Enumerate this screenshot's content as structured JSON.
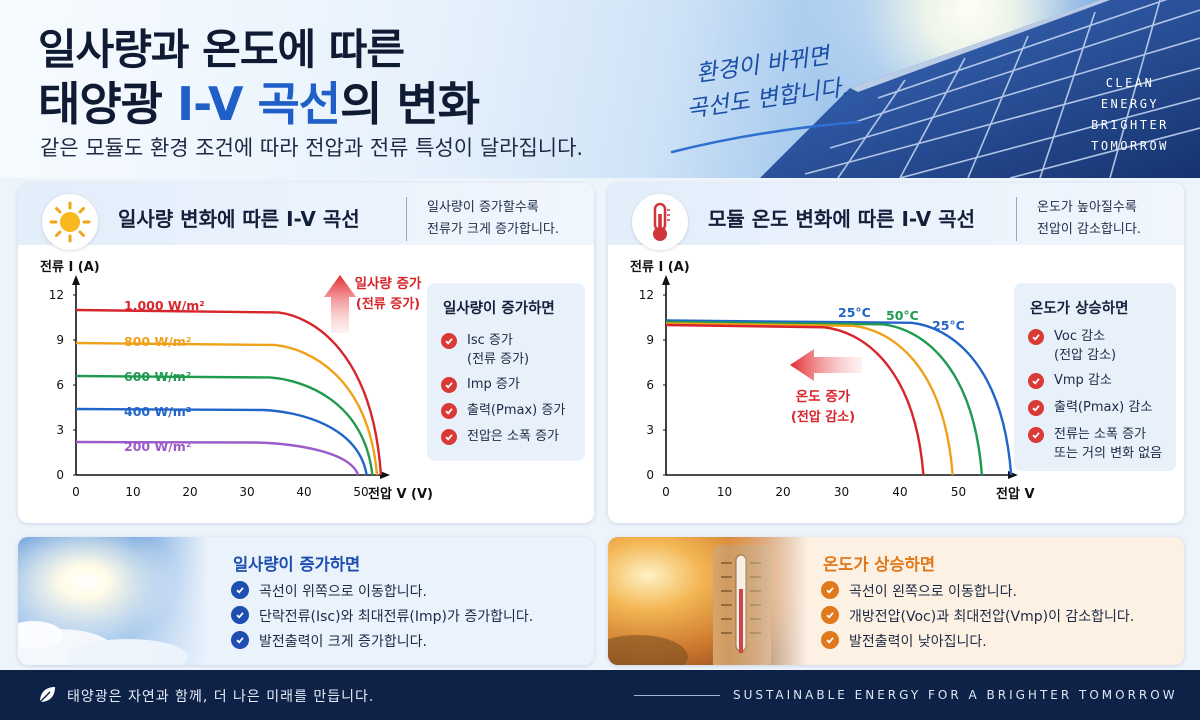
{
  "header": {
    "title_line1": "일사량과 온도에 따른",
    "title_line2_pre": "태양광",
    "title_line2_hl": "I-V 곡선",
    "title_line2_post": "의 변화",
    "subtitle": "같은 모듈도 환경 조건에 따라 전압과 전류 특성이 달라집니다.",
    "handwritten_line1": "환경이 바뀌면",
    "handwritten_line2": "곡선도 변합니다.",
    "badge": [
      "CLEAN",
      "ENERGY",
      "BRIGHTER",
      "TOMORROW"
    ]
  },
  "left_card": {
    "title": "일사량 변화에 따른 I-V 곡선",
    "note_line1": "일사량이 증가할수록",
    "note_line2": "전류가 크게 증가합니다.",
    "icon": "sun-icon",
    "arrow_label_line1": "일사량 증가",
    "arrow_label_line2": "(전류 증가)",
    "info_title": "일사량이 증가하면",
    "info_items": [
      {
        "line1": "Isc 증가",
        "line2": "(전류 증가)"
      },
      {
        "line1": "Imp 증가",
        "line2": ""
      },
      {
        "line1": "출력(Pmax) 증가",
        "line2": ""
      },
      {
        "line1": "전압은 소폭 증가",
        "line2": ""
      }
    ]
  },
  "right_card": {
    "title": "모듈 온도 변화에 따른 I-V 곡선",
    "note_line1": "온도가 높아질수록",
    "note_line2": "전압이 감소합니다.",
    "icon": "thermometer-icon",
    "arrow_label_line1": "온도 증가",
    "arrow_label_line2": "(전압 감소)",
    "info_title": "온도가 상승하면",
    "info_items": [
      {
        "line1": "Voc 감소",
        "line2": "(전압 감소)"
      },
      {
        "line1": "Vmp 감소",
        "line2": ""
      },
      {
        "line1": "출력(Pmax) 감소",
        "line2": ""
      },
      {
        "line1": "전류는 소폭 증가",
        "line2": "또는 거의 변화 없음"
      }
    ]
  },
  "chart_data": [
    {
      "type": "line",
      "ylabel": "전류 I (A)",
      "xlabel": "전압 V (V)",
      "xlim": [
        0,
        57
      ],
      "ylim": [
        0,
        12
      ],
      "x_ticks": [
        "0",
        "10",
        "20",
        "30",
        "40",
        "50"
      ],
      "y_ticks": [
        "0",
        "3",
        "6",
        "9",
        "12"
      ],
      "series": [
        {
          "name": "1,000 W/m²",
          "color": "#d6262c",
          "isc": 11,
          "voc": 53.5
        },
        {
          "name": "800 W/m²",
          "color": "#f0a11a",
          "isc": 8.8,
          "voc": 52.8
        },
        {
          "name": "600 W/m²",
          "color": "#1f9a4f",
          "isc": 6.6,
          "voc": 52
        },
        {
          "name": "400 W/m²",
          "color": "#2165c9",
          "isc": 4.4,
          "voc": 51
        },
        {
          "name": "200 W/m²",
          "color": "#9b5cc9",
          "isc": 2.2,
          "voc": 49.5
        }
      ]
    },
    {
      "type": "line",
      "ylabel": "전류 I (A)",
      "xlabel": "전압 V (V)",
      "xlim": [
        0,
        60
      ],
      "ylim": [
        0,
        12
      ],
      "x_ticks": [
        "0",
        "10",
        "20",
        "30",
        "40",
        "50"
      ],
      "y_ticks": [
        "0",
        "3",
        "6",
        "9",
        "12"
      ],
      "series": [
        {
          "name": "25°C",
          "color": "#2165c9",
          "isc": 10.3,
          "voc": 59
        },
        {
          "name": "50°C",
          "color": "#1f9a4f",
          "isc": 10.2,
          "voc": 54
        },
        {
          "name": "",
          "color": "#f0a11a",
          "isc": 10.1,
          "voc": 49
        },
        {
          "name": "",
          "color": "#d6262c",
          "isc": 10,
          "voc": 44
        }
      ],
      "extra_label": {
        "text": "25°C",
        "color": "#2165c9"
      }
    }
  ],
  "bottom_left": {
    "title": "일사량이 증가하면",
    "items": [
      "곡선이 위쪽으로 이동합니다.",
      "단락전류(Isc)와 최대전류(Imp)가 증가합니다.",
      "발전출력이 크게 증가합니다."
    ],
    "accent": "#1e4fb0"
  },
  "bottom_right": {
    "title": "온도가 상승하면",
    "items": [
      "곡선이 왼쪽으로 이동합니다.",
      "개방전압(Voc)과 최대전압(Vmp)이 감소합니다.",
      "발전출력이 낮아집니다."
    ],
    "accent": "#e0781c"
  },
  "footer": {
    "left": "태양광은 자연과 함께, 더 나은 미래를 만듭니다.",
    "right": "SUSTAINABLE ENERGY FOR A BRIGHTER  TOMORROW"
  }
}
